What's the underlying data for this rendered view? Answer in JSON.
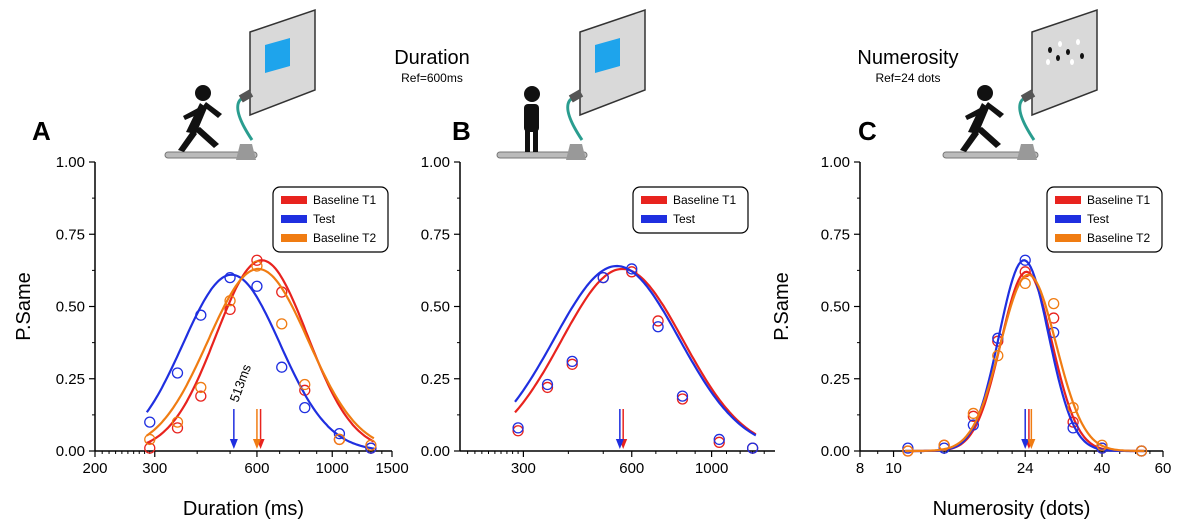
{
  "headers": [
    {
      "title": "Duration",
      "subtitle": "Ref=600ms"
    },
    {
      "title": "Numerosity",
      "subtitle": "Ref=24 dots"
    }
  ],
  "colors": {
    "baseline_t1": "#e8231e",
    "test": "#1f2fe0",
    "baseline_t2": "#f07c12",
    "screen_square": "#1ea4ec",
    "treadmill_arm": "#2a9d8f"
  },
  "icons": [
    "treadmill-runner-icon",
    "standing-person-treadmill-icon",
    "treadmill-runner-icon"
  ],
  "chart_data": [
    {
      "panel": "A",
      "type": "line",
      "xscale": "log",
      "xlabel": "Duration (ms)",
      "ylabel": "P.Same",
      "xlim": [
        200,
        1500
      ],
      "ylim": [
        0,
        1
      ],
      "xticks": [
        "200",
        "300",
        "600",
        "1000",
        "1500"
      ],
      "yticks": [
        "0.00",
        "0.25",
        "0.50",
        "0.75",
        "1.00"
      ],
      "legend_position": "top-right",
      "annotation": "513ms",
      "series": [
        {
          "name": "Baseline T1",
          "color": "#e8231e",
          "peak": 0.66,
          "mu": 620,
          "sigma_log": 0.31,
          "points": [
            [
              290,
              0.01
            ],
            [
              350,
              0.08
            ],
            [
              410,
              0.19
            ],
            [
              500,
              0.49
            ],
            [
              600,
              0.66
            ],
            [
              710,
              0.55
            ],
            [
              830,
              0.21
            ],
            [
              1050,
              0.04
            ],
            [
              1300,
              0.01
            ]
          ],
          "pse": 615
        },
        {
          "name": "Test",
          "color": "#1f2fe0",
          "peak": 0.61,
          "mu": 505,
          "sigma_log": 0.33,
          "points": [
            [
              290,
              0.1
            ],
            [
              350,
              0.27
            ],
            [
              410,
              0.47
            ],
            [
              500,
              0.6
            ],
            [
              600,
              0.57
            ],
            [
              710,
              0.29
            ],
            [
              830,
              0.15
            ],
            [
              1050,
              0.06
            ],
            [
              1300,
              0.01
            ]
          ],
          "pse": 513
        },
        {
          "name": "Baseline T2",
          "color": "#f07c12",
          "peak": 0.63,
          "mu": 605,
          "sigma_log": 0.34,
          "points": [
            [
              290,
              0.04
            ],
            [
              350,
              0.1
            ],
            [
              410,
              0.22
            ],
            [
              500,
              0.52
            ],
            [
              600,
              0.64
            ],
            [
              710,
              0.44
            ],
            [
              830,
              0.23
            ],
            [
              1050,
              0.04
            ],
            [
              1300,
              0.02
            ]
          ],
          "pse": 600
        }
      ]
    },
    {
      "panel": "B",
      "type": "line",
      "xscale": "log",
      "xlabel": "",
      "ylabel": "",
      "xlim": [
        200,
        1500
      ],
      "ylim": [
        0,
        1
      ],
      "xticks": [
        "300",
        "600",
        "1000"
      ],
      "yticks": [
        "0.00",
        "0.25",
        "0.50",
        "0.75",
        "1.00"
      ],
      "legend_position": "top-right",
      "series": [
        {
          "name": "Baseline T1",
          "color": "#e8231e",
          "peak": 0.63,
          "mu": 565,
          "sigma_log": 0.39,
          "points": [
            [
              290,
              0.07
            ],
            [
              350,
              0.22
            ],
            [
              410,
              0.3
            ],
            [
              500,
              0.6
            ],
            [
              600,
              0.62
            ],
            [
              710,
              0.45
            ],
            [
              830,
              0.18
            ],
            [
              1050,
              0.03
            ],
            [
              1300,
              0.01
            ]
          ],
          "pse": 568
        },
        {
          "name": "Test",
          "color": "#1f2fe0",
          "peak": 0.64,
          "mu": 545,
          "sigma_log": 0.4,
          "points": [
            [
              290,
              0.08
            ],
            [
              350,
              0.23
            ],
            [
              410,
              0.31
            ],
            [
              500,
              0.6
            ],
            [
              600,
              0.63
            ],
            [
              710,
              0.43
            ],
            [
              830,
              0.19
            ],
            [
              1050,
              0.04
            ],
            [
              1300,
              0.01
            ]
          ],
          "pse": 556
        }
      ]
    },
    {
      "panel": "C",
      "type": "line",
      "xscale": "log",
      "xlabel": "Numerosity (dots)",
      "ylabel": "P.Same",
      "xlim": [
        8,
        60
      ],
      "ylim": [
        0,
        1
      ],
      "xticks": [
        "8",
        "10",
        "24",
        "40",
        "60"
      ],
      "yticks": [
        "0.00",
        "0.25",
        "0.50",
        "0.75",
        "1.00"
      ],
      "legend_position": "top-right",
      "series": [
        {
          "name": "Baseline T1",
          "color": "#e8231e",
          "peak": 0.62,
          "mu": 24.2,
          "sigma_log": 0.17,
          "points": [
            [
              11,
              0.0
            ],
            [
              14,
              0.02
            ],
            [
              17,
              0.12
            ],
            [
              20,
              0.38
            ],
            [
              24,
              0.62
            ],
            [
              29,
              0.46
            ],
            [
              33,
              0.1
            ],
            [
              40,
              0.01
            ],
            [
              52,
              0.0
            ]
          ],
          "pse": 24.6
        },
        {
          "name": "Test",
          "color": "#1f2fe0",
          "peak": 0.66,
          "mu": 23.8,
          "sigma_log": 0.165,
          "points": [
            [
              11,
              0.01
            ],
            [
              14,
              0.01
            ],
            [
              17,
              0.09
            ],
            [
              20,
              0.39
            ],
            [
              24,
              0.66
            ],
            [
              29,
              0.41
            ],
            [
              33,
              0.08
            ],
            [
              40,
              0.01
            ],
            [
              52,
              0.0
            ]
          ],
          "pse": 24.0
        },
        {
          "name": "Baseline T2",
          "color": "#f07c12",
          "peak": 0.61,
          "mu": 24.5,
          "sigma_log": 0.185,
          "points": [
            [
              11,
              0.0
            ],
            [
              14,
              0.02
            ],
            [
              17,
              0.13
            ],
            [
              20,
              0.33
            ],
            [
              24,
              0.58
            ],
            [
              29,
              0.51
            ],
            [
              33,
              0.15
            ],
            [
              40,
              0.02
            ],
            [
              52,
              0.0
            ]
          ],
          "pse": 25.0
        }
      ]
    }
  ]
}
